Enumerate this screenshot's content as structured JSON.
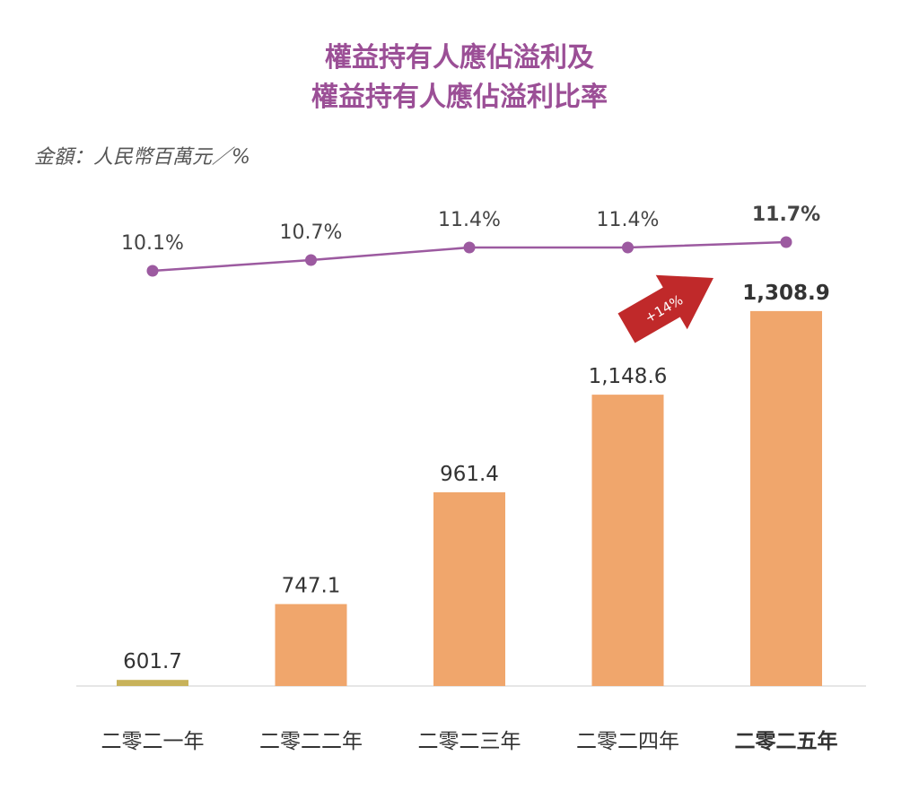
{
  "chart_data": {
    "type": "bar",
    "title_line1": "權益持有人應佔溢利及",
    "title_line2": "權益持有人應佔溢利比率",
    "unit_label": "金額：人民幣百萬元／%",
    "categories": [
      "二零二一年",
      "二零二二年",
      "二零二三年",
      "二零二四年",
      "二零二五年"
    ],
    "series": [
      {
        "type": "bar",
        "values": [
          601.7,
          747.1,
          961.4,
          1148.6,
          1308.9
        ],
        "labels": [
          "601.7",
          "747.1",
          "961.4",
          "1,148.6",
          "1,308.9"
        ]
      },
      {
        "type": "line",
        "values": [
          10.1,
          10.7,
          11.4,
          11.4,
          11.7
        ],
        "labels": [
          "10.1%",
          "10.7%",
          "11.4%",
          "11.4%",
          "11.7%"
        ]
      }
    ],
    "annotation": "+14%",
    "highlight_index": 4,
    "colors": {
      "title": "#9b4f96",
      "bar": "#f0a66c",
      "first_bar": "#c8b25a",
      "line": "#9c5aa0",
      "arrow": "#c0292a",
      "baseline": "#dddddd",
      "highlight_text": "#222222",
      "highlight_rate": "#9b4f96"
    }
  }
}
